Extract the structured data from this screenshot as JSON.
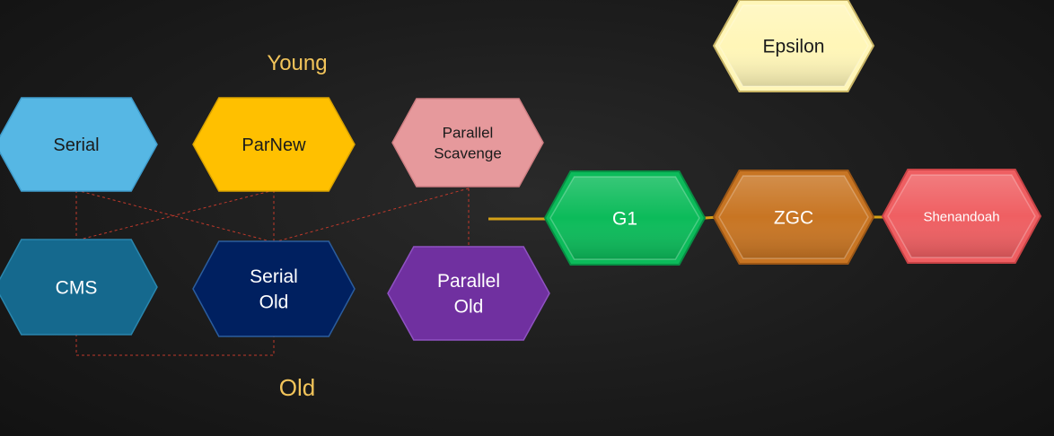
{
  "diagram": {
    "region_labels": {
      "young": "Young",
      "old": "Old"
    },
    "nodes": [
      {
        "id": "serial",
        "lines": [
          "Serial"
        ],
        "fill": "#56b7e4",
        "stroke": "#3f9ccc",
        "text_color": "#1b1b1b"
      },
      {
        "id": "parnew",
        "lines": [
          "ParNew"
        ],
        "fill": "#ffc000",
        "stroke": "#d9a200",
        "text_color": "#1b1b1b"
      },
      {
        "id": "parallel-scavenge",
        "lines": [
          "Parallel",
          "Scavenge"
        ],
        "fill": "#e6999c",
        "stroke": "#cf7f83",
        "text_color": "#1b1b1b"
      },
      {
        "id": "cms",
        "lines": [
          "CMS"
        ],
        "fill": "#15698e",
        "stroke": "#2a86ad",
        "text_color": "#ffffff"
      },
      {
        "id": "serial-old",
        "lines": [
          "Serial",
          "Old"
        ],
        "fill": "#002060",
        "stroke": "#2b5d9e",
        "text_color": "#ffffff"
      },
      {
        "id": "parallel-old",
        "lines": [
          "Parallel",
          "Old"
        ],
        "fill": "#7030a0",
        "stroke": "#8f52c2",
        "text_color": "#ffffff"
      },
      {
        "id": "g1",
        "lines": [
          "G1"
        ],
        "fill": "#0cbb5a",
        "stroke": "#078f44",
        "text_color": "#ffffff"
      },
      {
        "id": "zgc",
        "lines": [
          "ZGC"
        ],
        "fill": "#c87523",
        "stroke": "#9c5716",
        "text_color": "#ffffff"
      },
      {
        "id": "shenandoah",
        "lines": [
          "Shenandoah"
        ],
        "fill": "#ef5f62",
        "stroke": "#c94346",
        "text_color": "#ffffff"
      },
      {
        "id": "epsilon",
        "lines": [
          "Epsilon"
        ],
        "fill": "#fff6b8",
        "stroke": "#c9b566",
        "text_color": "#1b1b1b"
      }
    ],
    "colors": {
      "region_label": "#f2c45a",
      "dashed_link": "#c0392b",
      "solid_link": "#d4a017"
    }
  }
}
